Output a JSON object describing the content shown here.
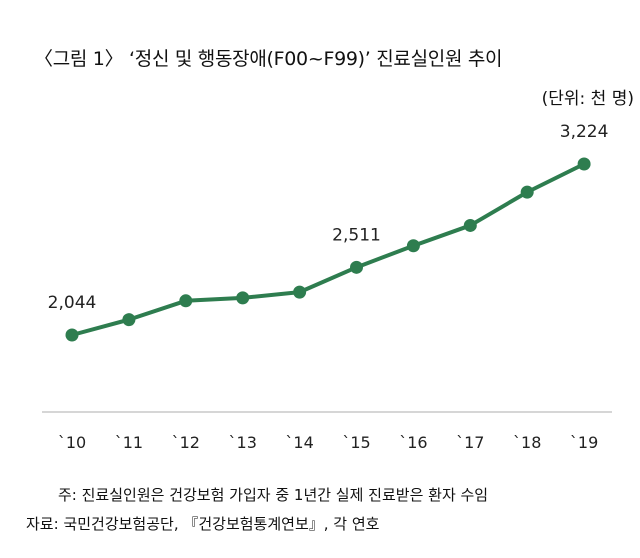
{
  "title": "〈그림 1〉 ‘정신 및 행동장애(F00~F99)’ 진료실인원 추이",
  "unit": "(단위: 천 명)",
  "notes": {
    "note": "주: 진료실인원은 건강보험 가입자 중 1년간 실제 진료받은 환자 수임",
    "source": "자료: 국민건강보험공단, 『건강보험통계연보』, 각 연호"
  },
  "colors": {
    "line": "#2e7d4f",
    "axis": "#bdbdbd"
  },
  "chart_data": {
    "type": "line",
    "categories": [
      "`10",
      "`11",
      "`12",
      "`13",
      "`14",
      "`15",
      "`16",
      "`17",
      "`18",
      "`19"
    ],
    "values": [
      2044,
      2150,
      2280,
      2300,
      2340,
      2511,
      2660,
      2800,
      3030,
      3224
    ],
    "data_labels": [
      {
        "index": 0,
        "text": "2,044"
      },
      {
        "index": 5,
        "text": "2,511"
      },
      {
        "index": 9,
        "text": "3,224"
      }
    ],
    "ylim": [
      1300,
      3300
    ],
    "grid": false,
    "legend": "none"
  }
}
